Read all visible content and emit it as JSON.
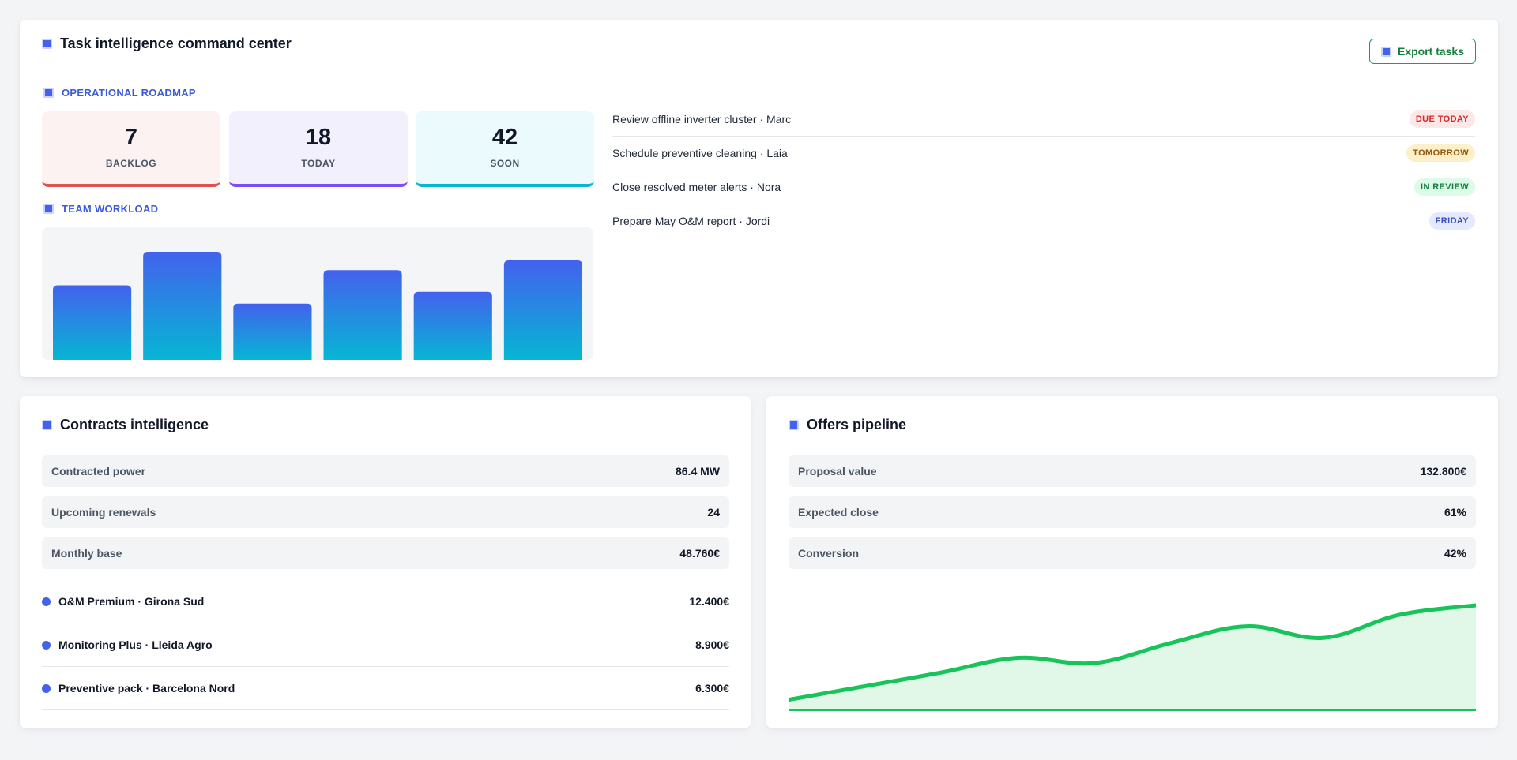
{
  "tasks_card": {
    "title": "Task intelligence command center",
    "export_label": "Export tasks",
    "roadmap_label": "OPERATIONAL ROADMAP",
    "workload_label": "TEAM WORKLOAD",
    "kpis": [
      {
        "value": "7",
        "label": "BACKLOG",
        "bg": "#fdf2f2",
        "accent": "#e05252"
      },
      {
        "value": "18",
        "label": "TODAY",
        "bg": "#f3f0fd",
        "accent": "#7c4dff"
      },
      {
        "value": "42",
        "label": "SOON",
        "bg": "#ebfafd",
        "accent": "#06b6d4"
      }
    ],
    "tasks": [
      {
        "text": "Review offline inverter cluster · Marc",
        "badge": "DUE TODAY",
        "badge_bg": "#fde8e8",
        "badge_fg": "#dc2626"
      },
      {
        "text": "Schedule preventive cleaning · Laia",
        "badge": "TOMORROW",
        "badge_bg": "#fdf0c8",
        "badge_fg": "#92570c"
      },
      {
        "text": "Close resolved meter alerts · Nora",
        "badge": "IN REVIEW",
        "badge_bg": "#dcfce7",
        "badge_fg": "#15803d"
      },
      {
        "text": "Prepare May O&M report · Jordi",
        "badge": "FRIDAY",
        "badge_bg": "#e4e9fd",
        "badge_fg": "#3b4fc4"
      }
    ]
  },
  "chart_data": [
    {
      "type": "bar",
      "title": "TEAM WORKLOAD",
      "categories": [
        "",
        "",
        "",
        "",
        "",
        ""
      ],
      "values": [
        69,
        100,
        52,
        83,
        63,
        92
      ],
      "ylim": [
        0,
        100
      ],
      "grid": false,
      "colors": [
        "#4361ee",
        "#06b6d4"
      ]
    },
    {
      "type": "area",
      "title": "",
      "x": [
        0,
        1,
        2,
        3,
        4,
        5,
        6,
        7,
        8,
        9
      ],
      "values": [
        10,
        23,
        36,
        50,
        45,
        64,
        80,
        69,
        91,
        100
      ],
      "ylim": [
        0,
        120
      ],
      "grid": false,
      "colors": [
        "#16c45a",
        "#e1f7e8"
      ]
    }
  ],
  "contracts_card": {
    "title": "Contracts intelligence",
    "stats": [
      {
        "label": "Contracted power",
        "value": "86.4 MW"
      },
      {
        "label": "Upcoming renewals",
        "value": "24"
      },
      {
        "label": "Monthly base",
        "value": "48.760€"
      }
    ],
    "contracts": [
      {
        "name": "O&M Premium · Girona Sud",
        "amount": "12.400€"
      },
      {
        "name": "Monitoring Plus · Lleida Agro",
        "amount": "8.900€"
      },
      {
        "name": "Preventive pack · Barcelona Nord",
        "amount": "6.300€"
      }
    ]
  },
  "offers_card": {
    "title": "Offers pipeline",
    "stats": [
      {
        "label": "Proposal value",
        "value": "132.800€"
      },
      {
        "label": "Expected close",
        "value": "61%"
      },
      {
        "label": "Conversion",
        "value": "42%"
      }
    ]
  },
  "colors": {
    "accent": "#4361ee",
    "green": "#16a34a",
    "background": "#f3f4f6"
  }
}
